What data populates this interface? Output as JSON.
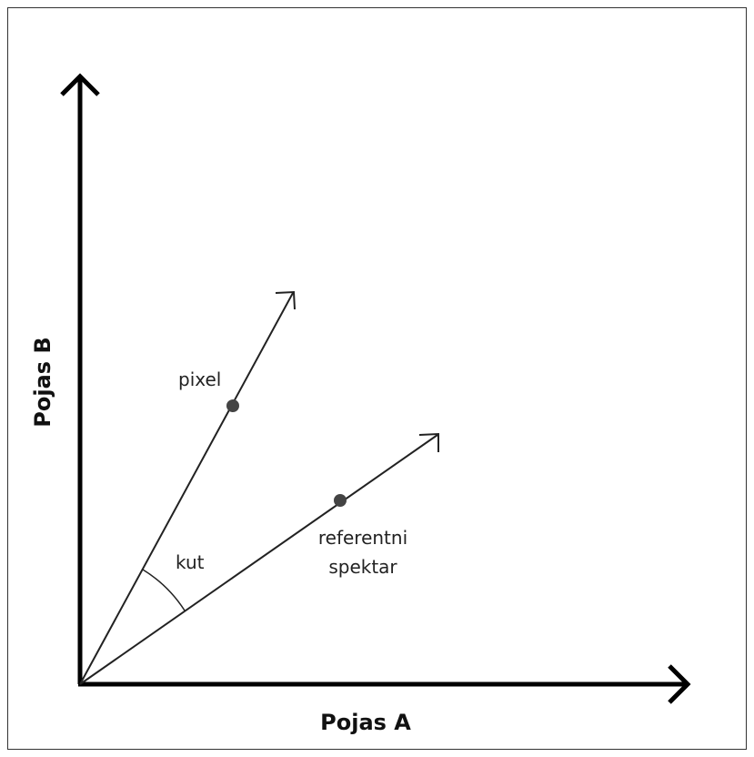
{
  "x_axis": {
    "label": "Pojas A"
  },
  "y_axis": {
    "label": "Pojas B"
  },
  "vectors": [
    {
      "label": "pixel"
    },
    {
      "label": "referentni spektar"
    }
  ],
  "angle": {
    "label": "kut"
  }
}
